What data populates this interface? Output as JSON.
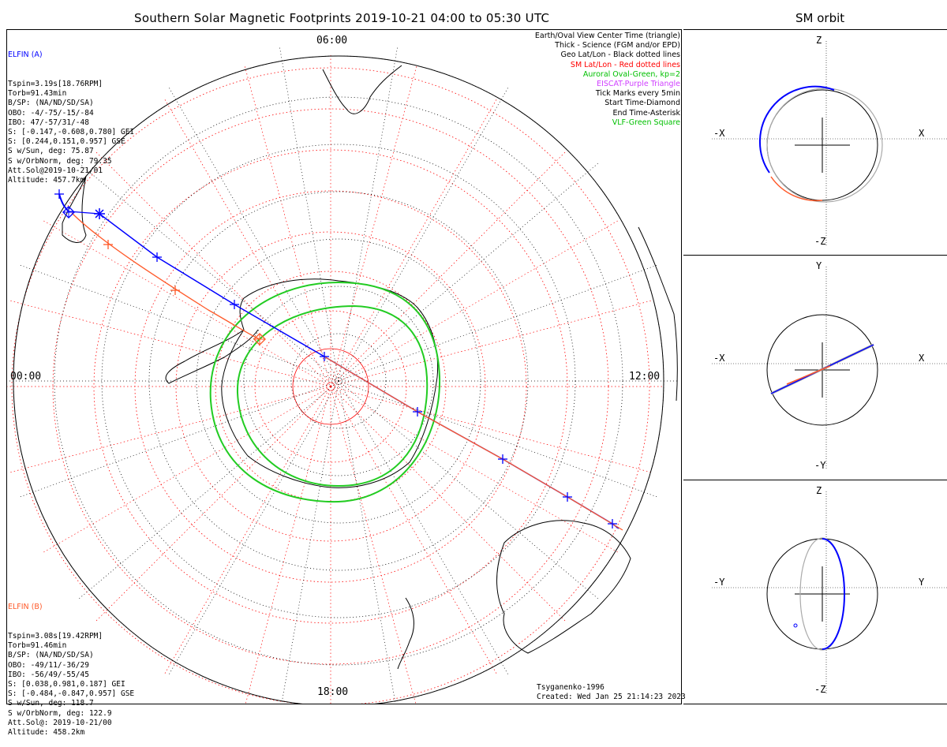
{
  "header": {
    "title": "Southern Solar Magnetic Footprints 2019-10-21 04:00 to 05:30 UTC",
    "orbit_title": "SM orbit"
  },
  "elfin_a": {
    "name": "ELFIN (A)",
    "color": "#0000ff",
    "lines": [
      "Tspin=3.19s[18.76RPM]",
      "Torb=91.43min",
      "B/SP: (NA/ND/SD/SA)",
      "OBO: -4/-75/-15/-84",
      "IBO: 47/-57/31/-48",
      "S: [-0.147,-0.608,0.780] GEI",
      "S: [0.244,0.151,0.957] GSE",
      "S w/Sun, deg: 75.87",
      "S w/OrbNorm, deg: 79.35",
      "Att.Sol@2019-10-21/01",
      "Altitude: 457.7km"
    ]
  },
  "elfin_b": {
    "name": "ELFIN (B)",
    "color": "#ff5a2a",
    "lines": [
      "Tspin=3.08s[19.42RPM]",
      "Torb=91.46min",
      "B/SP: (NA/ND/SD/SA)",
      "OBO: -49/11/-36/29",
      "IBO: -56/49/-55/45",
      "S: [0.038,0.981,0.187] GEI",
      "S: [-0.484,-0.847,0.957] GSE",
      "S w/Sun, deg: 118.7",
      "S w/OrbNorm, deg: 122.9",
      "Att.Sol@: 2019-10-21/00",
      "Altitude: 458.2km"
    ]
  },
  "legend": [
    {
      "text": "Earth/Oval View Center Time (triangle)",
      "color": "#000000"
    },
    {
      "text": "Thick - Science (FGM and/or EPD)",
      "color": "#000000"
    },
    {
      "text": "Geo Lat/Lon - Black dotted lines",
      "color": "#000000"
    },
    {
      "text": "SM Lat/Lon - Red dotted lines",
      "color": "#ff0000"
    },
    {
      "text": "Auroral Oval-Green, kp=2",
      "color": "#00c000"
    },
    {
      "text": "EISCAT-Purple Triangle",
      "color": "#d040ff"
    },
    {
      "text": "Tick Marks every 5min",
      "color": "#000000"
    },
    {
      "text": "Start Time-Diamond",
      "color": "#000000"
    },
    {
      "text": "End Time-Asterisk",
      "color": "#000000"
    },
    {
      "text": "VLF-Green Square",
      "color": "#00c000"
    }
  ],
  "map_labels": {
    "top": "06:00",
    "left": "00:00",
    "right": "12:00",
    "bottom": "18:00"
  },
  "credits": {
    "model": "Tsyganenko-1996",
    "created": "Created: Wed Jan 25 21:14:23 2023"
  },
  "orbit_panels": [
    {
      "h": "-X",
      "h2": "X",
      "v": "Z",
      "v2": "-Z"
    },
    {
      "h": "-X",
      "h2": "X",
      "v": "Y",
      "v2": "-Y"
    },
    {
      "h": "-Y",
      "h2": "Y",
      "v": "Z",
      "v2": "-Z"
    }
  ],
  "colors": {
    "elfin_a_track": "#0000ff",
    "elfin_b_track": "#ff5a2a",
    "auroral_oval": "#22cc22",
    "sm_grid": "#ff0000",
    "geo_grid": "#000000",
    "orbit_gray": "#aaaaaa"
  }
}
